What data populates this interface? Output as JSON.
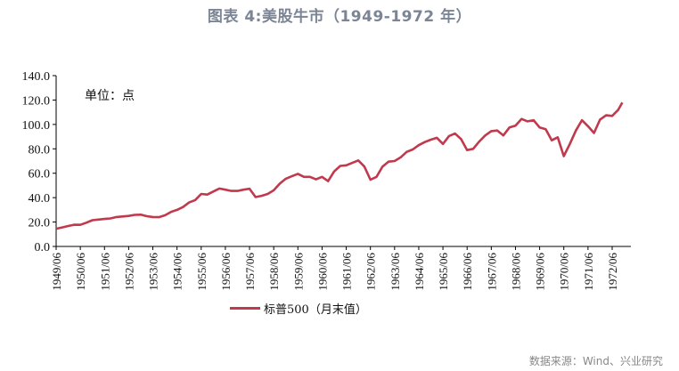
{
  "title": "图表 4:美股牛市（1949-1972 年）",
  "unit_label": "单位：点",
  "source": "数据来源：Wind、兴业研究",
  "colors": {
    "line": "#c0394d",
    "title": "#7b8595",
    "axis": "#000000"
  },
  "chart_data": {
    "type": "line",
    "title": "图表 4:美股牛市（1949-1972 年）",
    "xlabel": "",
    "ylabel": "单位：点",
    "ylim": [
      0,
      140
    ],
    "yticks": [
      "0.0",
      "20.0",
      "40.0",
      "60.0",
      "80.0",
      "100.0",
      "120.0",
      "140.0"
    ],
    "xticks": [
      "1949/06",
      "1950/06",
      "1951/06",
      "1952/06",
      "1953/06",
      "1954/06",
      "1955/06",
      "1956/06",
      "1957/06",
      "1958/06",
      "1959/06",
      "1960/06",
      "1961/06",
      "1962/06",
      "1963/06",
      "1964/06",
      "1965/06",
      "1966/06",
      "1967/06",
      "1968/06",
      "1969/06",
      "1970/06",
      "1971/06",
      "1972/06"
    ],
    "grid": false,
    "legend_position": "bottom",
    "series": [
      {
        "name": "标普500（月末值）",
        "x": [
          1949.5,
          1949.75,
          1950.0,
          1950.25,
          1950.5,
          1950.75,
          1951.0,
          1951.25,
          1951.5,
          1951.75,
          1952.0,
          1952.25,
          1952.5,
          1952.75,
          1953.0,
          1953.25,
          1953.5,
          1953.75,
          1954.0,
          1954.25,
          1954.5,
          1954.75,
          1955.0,
          1955.25,
          1955.5,
          1955.75,
          1956.0,
          1956.25,
          1956.5,
          1956.75,
          1957.0,
          1957.25,
          1957.5,
          1957.75,
          1958.0,
          1958.25,
          1958.5,
          1958.75,
          1959.0,
          1959.25,
          1959.5,
          1959.75,
          1960.0,
          1960.25,
          1960.5,
          1960.75,
          1961.0,
          1961.25,
          1961.5,
          1961.75,
          1962.0,
          1962.25,
          1962.5,
          1962.75,
          1963.0,
          1963.25,
          1963.5,
          1963.75,
          1964.0,
          1964.25,
          1964.5,
          1964.75,
          1965.0,
          1965.25,
          1965.5,
          1965.75,
          1966.0,
          1966.25,
          1966.5,
          1966.75,
          1967.0,
          1967.25,
          1967.5,
          1967.75,
          1968.0,
          1968.25,
          1968.5,
          1968.75,
          1969.0,
          1969.25,
          1969.5,
          1969.75,
          1970.0,
          1970.25,
          1970.5,
          1970.75,
          1971.0,
          1971.25,
          1971.5,
          1971.75,
          1972.0,
          1972.25,
          1972.5,
          1972.75,
          1972.92
        ],
        "values": [
          14.5,
          15.6,
          16.8,
          17.8,
          17.7,
          19.5,
          21.5,
          22.0,
          22.5,
          23.0,
          24.1,
          24.6,
          25.0,
          25.9,
          26.0,
          24.8,
          24.1,
          24.0,
          25.5,
          28.3,
          30.0,
          32.3,
          36.0,
          38.0,
          43.0,
          42.5,
          45.0,
          47.5,
          46.5,
          45.5,
          45.5,
          46.5,
          47.3,
          40.5,
          41.5,
          43.0,
          46.0,
          51.5,
          55.5,
          57.5,
          59.5,
          57.0,
          57.0,
          55.0,
          57.0,
          53.5,
          61.5,
          66.0,
          66.5,
          68.5,
          70.5,
          65.5,
          54.7,
          57.0,
          65.5,
          69.5,
          70.0,
          73.0,
          77.5,
          79.5,
          83.0,
          85.5,
          87.5,
          89.0,
          84.0,
          90.5,
          92.5,
          88.0,
          79.0,
          80.0,
          86.0,
          91.0,
          94.5,
          95.0,
          91.0,
          97.5,
          99.0,
          104.5,
          102.5,
          103.5,
          97.5,
          96.0,
          87.0,
          89.5,
          74.0,
          84.0,
          95.0,
          103.5,
          98.5,
          93.0,
          104.0,
          107.5,
          107.0,
          112.0,
          118.0
        ]
      }
    ]
  }
}
